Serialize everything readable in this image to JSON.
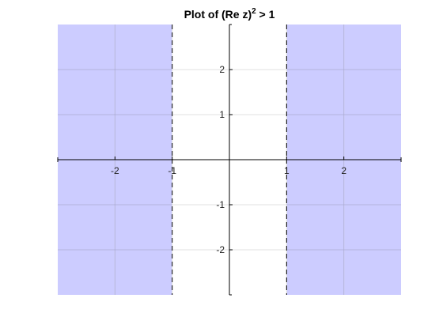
{
  "chart_data": {
    "type": "area",
    "title": {
      "prefix": "Plot of (Re z)",
      "superscript": "2",
      "suffix": " > 1"
    },
    "xlabel": "",
    "ylabel": "",
    "xlim": [
      -3,
      3
    ],
    "ylim": [
      -3,
      3
    ],
    "grid": true,
    "axes_through_origin": true,
    "x_ticks": [
      {
        "value": -2,
        "label": "-2"
      },
      {
        "value": -1,
        "label": "-1"
      },
      {
        "value": 1,
        "label": "1"
      },
      {
        "value": 2,
        "label": "2"
      }
    ],
    "y_ticks": [
      {
        "value": 2,
        "label": "2"
      },
      {
        "value": 1,
        "label": "1"
      },
      {
        "value": -1,
        "label": "-1"
      },
      {
        "value": -2,
        "label": "-2"
      }
    ],
    "grid_values": [
      -2,
      -1,
      0,
      1,
      2
    ],
    "shaded_regions": [
      {
        "x_from": -3,
        "x_to": -1
      },
      {
        "x_from": 1,
        "x_to": 3
      }
    ],
    "boundary_lines": [
      {
        "x": -1,
        "style": "dashed"
      },
      {
        "x": 1,
        "style": "dashed"
      }
    ],
    "colors": {
      "fill": "#ccccff",
      "grid": "#e1e1e1",
      "grid_on_fill": "#a8a8dc",
      "axis": "#000000",
      "boundary": "#000000"
    }
  }
}
